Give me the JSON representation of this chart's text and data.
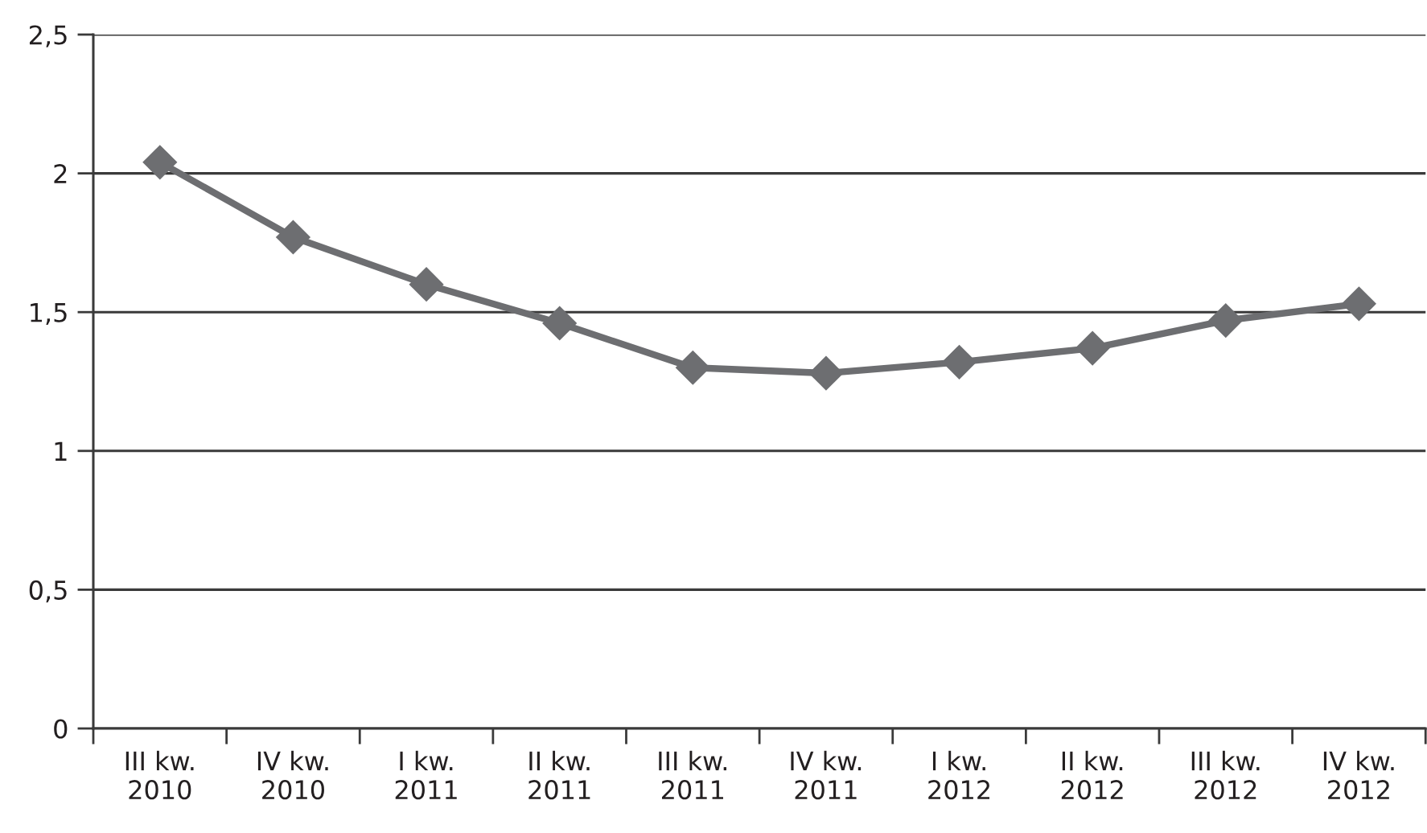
{
  "chart_data": {
    "type": "line",
    "categories": [
      "III kw.\n2010",
      "IV kw.\n2010",
      "I kw.\n2011",
      "II kw.\n2011",
      "III kw.\n2011",
      "IV kw.\n2011",
      "I kw.\n2012",
      "II kw.\n2012",
      "III kw.\n2012",
      "IV kw.\n2012"
    ],
    "series": [
      {
        "color": "#6d6e71",
        "values": [
          2.04,
          1.77,
          1.6,
          1.46,
          1.3,
          1.28,
          1.32,
          1.37,
          1.47,
          1.53
        ]
      }
    ],
    "ylim": [
      0,
      2.5
    ],
    "yticks": [
      0,
      {
        "value": 0.5,
        "label": "0,5"
      },
      1,
      {
        "value": 1.5,
        "label": "1,5"
      },
      2,
      {
        "value": 2.5,
        "label": "2,5"
      }
    ],
    "grid": "y",
    "marker": "diamond",
    "line_style": "solid"
  }
}
